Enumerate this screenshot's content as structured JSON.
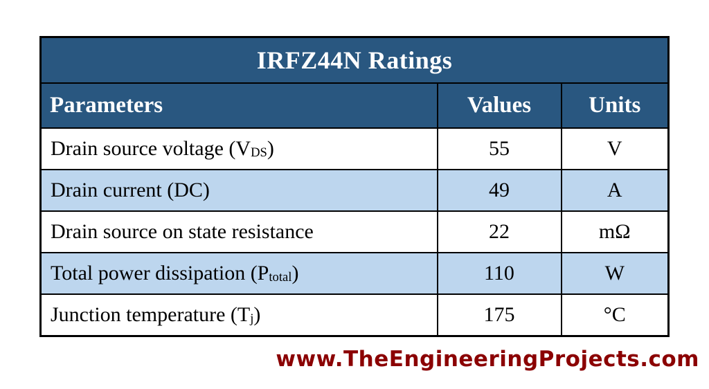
{
  "table": {
    "title": "IRFZ44N Ratings",
    "columns": [
      "Parameters",
      "Values",
      "Units"
    ],
    "rows": [
      {
        "param_pre": "Drain source voltage (V",
        "param_sub": "DS",
        "param_post": ")",
        "value": "55",
        "unit": "V"
      },
      {
        "param_pre": "Drain current (DC)",
        "param_sub": "",
        "param_post": "",
        "value": "49",
        "unit": "A"
      },
      {
        "param_pre": "Drain source on state resistance",
        "param_sub": "",
        "param_post": "",
        "value": "22",
        "unit": "mΩ"
      },
      {
        "param_pre": "Total power dissipation (P",
        "param_sub": "total",
        "param_post": ")",
        "value": "110",
        "unit": "W"
      },
      {
        "param_pre": "Junction temperature (T",
        "param_sub": "j",
        "param_post": ")",
        "value": "175",
        "unit": "°C"
      }
    ],
    "colors": {
      "header_bg": "#295780",
      "alt_row_bg": "#BDD6EE",
      "row_bg": "#FFFFFF",
      "border": "#000000",
      "header_text": "#FFFFFF",
      "body_text": "#000000"
    }
  },
  "footer": {
    "watermark": "www.TheEngineeringProjects.com",
    "color": "#8B0002"
  }
}
